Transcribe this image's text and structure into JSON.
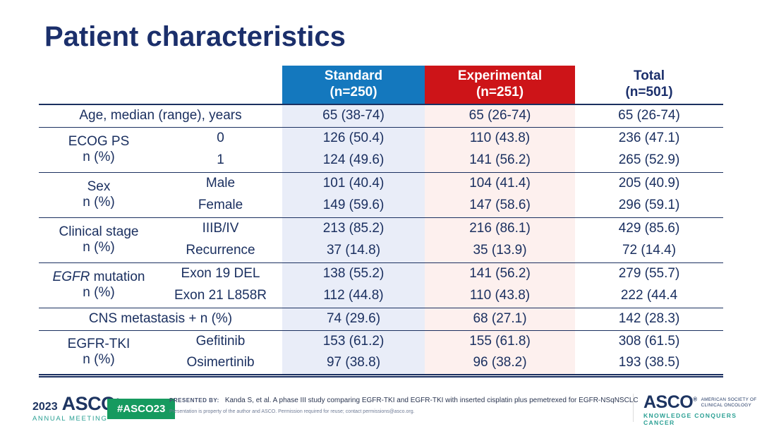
{
  "title": "Patient characteristics",
  "table": {
    "header": {
      "standard_line1": "Standard",
      "standard_line2": "(n=250)",
      "experimental_line1": "Experimental",
      "experimental_line2": "(n=251)",
      "total_line1": "Total",
      "total_line2": "(n=501)"
    },
    "age": {
      "label": "Age, median (range), years",
      "std": "65 (38-74)",
      "exp": "65 (26-74)",
      "tot": "65 (26-74)"
    },
    "ecog": {
      "label_line1": "ECOG PS",
      "label_line2": "n (%)",
      "rows": [
        {
          "sub": "0",
          "std": "126 (50.4)",
          "exp": "110 (43.8)",
          "tot": "236 (47.1)"
        },
        {
          "sub": "1",
          "std": "124 (49.6)",
          "exp": "141 (56.2)",
          "tot": "265 (52.9)"
        }
      ]
    },
    "sex": {
      "label_line1": "Sex",
      "label_line2": "n (%)",
      "rows": [
        {
          "sub": "Male",
          "std": "101 (40.4)",
          "exp": "104 (41.4)",
          "tot": "205 (40.9)"
        },
        {
          "sub": "Female",
          "std": "149 (59.6)",
          "exp": "147 (58.6)",
          "tot": "296 (59.1)"
        }
      ]
    },
    "stage": {
      "label_line1": "Clinical stage",
      "label_line2": "n (%)",
      "rows": [
        {
          "sub": "IIIB/IV",
          "std": "213 (85.2)",
          "exp": "216 (86.1)",
          "tot": "429 (85.6)"
        },
        {
          "sub": "Recurrence",
          "std": "37 (14.8)",
          "exp": "35 (13.9)",
          "tot": "72 (14.4)"
        }
      ]
    },
    "egfr": {
      "label_italic": "EGFR",
      "label_rest": " mutation",
      "label_line2": "n (%)",
      "rows": [
        {
          "sub": "Exon 19 DEL",
          "std": "138 (55.2)",
          "exp": "141 (56.2)",
          "tot": "279 (55.7)"
        },
        {
          "sub": "Exon 21 L858R",
          "std": "112 (44.8)",
          "exp": "110 (43.8)",
          "tot": "222 (44.4"
        }
      ]
    },
    "cns": {
      "label": "CNS metastasis + n (%)",
      "std": "74 (29.6)",
      "exp": "68 (27.1)",
      "tot": "142 (28.3)"
    },
    "tki": {
      "label_line1": "EGFR-TKI",
      "label_line2": "n (%)",
      "rows": [
        {
          "sub": "Gefitinib",
          "std": "153 (61.2)",
          "exp": "155 (61.8)",
          "tot": "308 (61.5)"
        },
        {
          "sub": "Osimertinib",
          "std": "97 (38.8)",
          "exp": "96 (38.2)",
          "tot": "193 (38.5)"
        }
      ]
    }
  },
  "footer": {
    "year": "2023",
    "asco": "ASCO",
    "asco_mark": "®",
    "annual_meeting": "ANNUAL MEETING",
    "hashtag": "#ASCO23",
    "presented_by": "PRESENTED BY:",
    "citation": "Kanda S, et al. A phase III study comparing EGFR-TKI and EGFR-TKI with inserted cisplatin plus pemetrexed for EGFR-NSqNSCLC",
    "permission": "Presentation is property of the author and ASCO. Permission required for reuse; contact permissions@asco.org.",
    "logo_asco": "ASCO",
    "society_line1": "AMERICAN SOCIETY OF",
    "society_line2": "CLINICAL ONCOLOGY",
    "tagline": "KNOWLEDGE CONQUERS CANCER"
  },
  "colors": {
    "title_navy": "#1b2f6b",
    "table_text_navy": "#1b3060",
    "standard_blue": "#1478be",
    "experimental_red": "#cd1418",
    "standard_tint": "#e9edf8",
    "experimental_tint": "#fdf0ee",
    "badge_green": "#169a5f",
    "teal": "#2ba094"
  }
}
